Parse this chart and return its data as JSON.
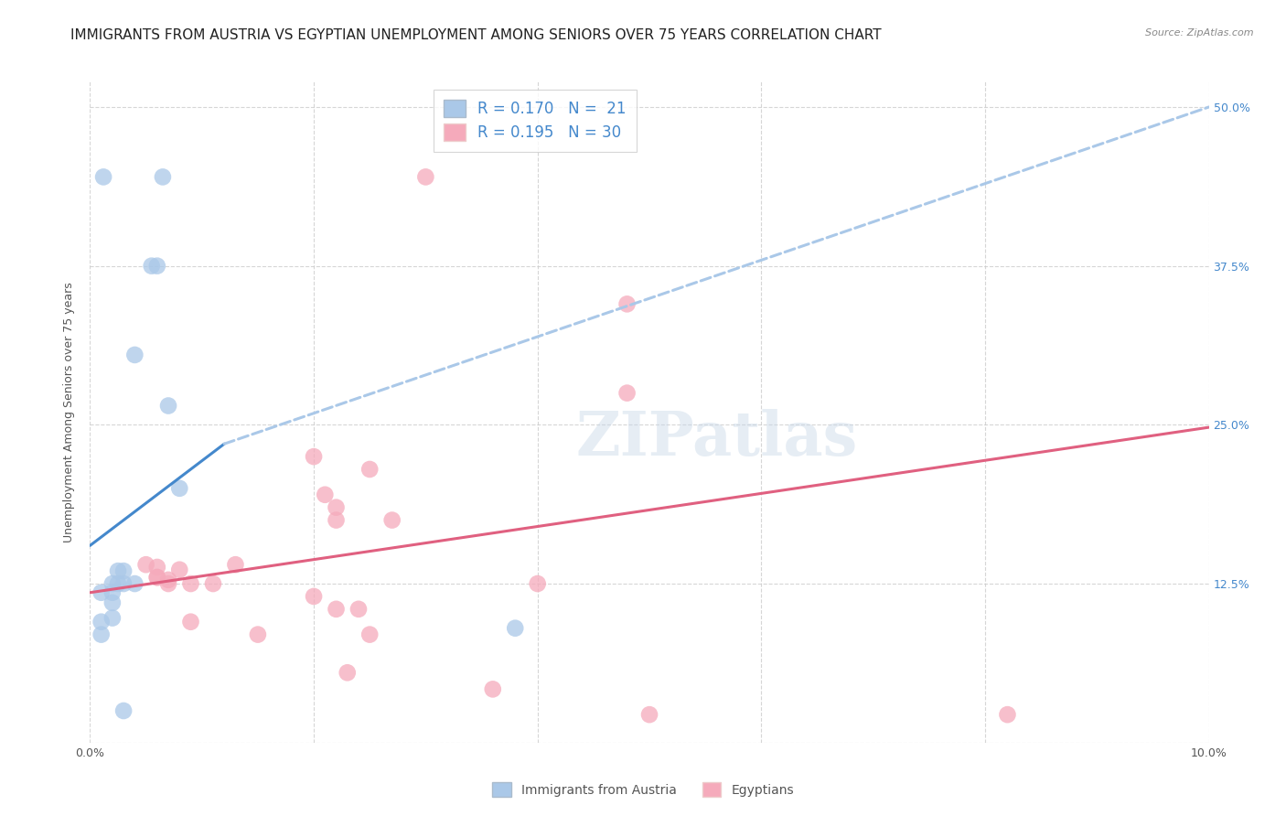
{
  "title": "IMMIGRANTS FROM AUSTRIA VS EGYPTIAN UNEMPLOYMENT AMONG SENIORS OVER 75 YEARS CORRELATION CHART",
  "source": "Source: ZipAtlas.com",
  "ylabel": "Unemployment Among Seniors over 75 years",
  "xlim": [
    0.0,
    0.1
  ],
  "ylim": [
    0.0,
    0.52
  ],
  "xtick_vals": [
    0.0,
    0.02,
    0.04,
    0.06,
    0.08,
    0.1
  ],
  "xtick_labels": [
    "0.0%",
    "",
    "",
    "",
    "",
    "10.0%"
  ],
  "yticks_right": [
    0.0,
    0.125,
    0.25,
    0.375,
    0.5
  ],
  "ytick_right_labels": [
    "",
    "12.5%",
    "25.0%",
    "37.5%",
    "50.0%"
  ],
  "blue_R": 0.17,
  "blue_N": 21,
  "pink_R": 0.195,
  "pink_N": 30,
  "blue_color": "#aac8e8",
  "pink_color": "#f5aabb",
  "blue_line_color": "#4488cc",
  "pink_line_color": "#e06080",
  "dashed_line_color": "#aac8e8",
  "legend_R_color": "#4488cc",
  "background_color": "#ffffff",
  "grid_color": "#cccccc",
  "blue_points": [
    [
      0.0012,
      0.445
    ],
    [
      0.0065,
      0.445
    ],
    [
      0.0055,
      0.375
    ],
    [
      0.006,
      0.375
    ],
    [
      0.004,
      0.305
    ],
    [
      0.007,
      0.265
    ],
    [
      0.008,
      0.2
    ],
    [
      0.0025,
      0.135
    ],
    [
      0.003,
      0.135
    ],
    [
      0.002,
      0.125
    ],
    [
      0.0025,
      0.125
    ],
    [
      0.003,
      0.125
    ],
    [
      0.004,
      0.125
    ],
    [
      0.001,
      0.118
    ],
    [
      0.002,
      0.118
    ],
    [
      0.002,
      0.11
    ],
    [
      0.002,
      0.098
    ],
    [
      0.001,
      0.095
    ],
    [
      0.001,
      0.085
    ],
    [
      0.003,
      0.025
    ],
    [
      0.038,
      0.09
    ]
  ],
  "pink_points": [
    [
      0.03,
      0.445
    ],
    [
      0.048,
      0.345
    ],
    [
      0.048,
      0.275
    ],
    [
      0.02,
      0.225
    ],
    [
      0.025,
      0.215
    ],
    [
      0.021,
      0.195
    ],
    [
      0.022,
      0.185
    ],
    [
      0.022,
      0.175
    ],
    [
      0.027,
      0.175
    ],
    [
      0.013,
      0.14
    ],
    [
      0.005,
      0.14
    ],
    [
      0.006,
      0.138
    ],
    [
      0.008,
      0.136
    ],
    [
      0.006,
      0.13
    ],
    [
      0.006,
      0.13
    ],
    [
      0.007,
      0.128
    ],
    [
      0.007,
      0.125
    ],
    [
      0.009,
      0.125
    ],
    [
      0.011,
      0.125
    ],
    [
      0.04,
      0.125
    ],
    [
      0.02,
      0.115
    ],
    [
      0.022,
      0.105
    ],
    [
      0.024,
      0.105
    ],
    [
      0.009,
      0.095
    ],
    [
      0.015,
      0.085
    ],
    [
      0.025,
      0.085
    ],
    [
      0.023,
      0.055
    ],
    [
      0.036,
      0.042
    ],
    [
      0.05,
      0.022
    ],
    [
      0.082,
      0.022
    ]
  ],
  "blue_solid_line": [
    [
      0.0,
      0.155
    ],
    [
      0.012,
      0.235
    ]
  ],
  "blue_dashed_line": [
    [
      0.012,
      0.235
    ],
    [
      0.1,
      0.5
    ]
  ],
  "pink_line": [
    [
      0.0,
      0.118
    ],
    [
      0.1,
      0.248
    ]
  ],
  "watermark_text": "ZIPatlas",
  "title_fontsize": 11,
  "axis_fontsize": 9,
  "tick_fontsize": 9,
  "point_size": 180,
  "legend_item1": "R = 0.170   N =  21",
  "legend_item2": "R = 0.195   N = 30",
  "bottom_legend1": "Immigrants from Austria",
  "bottom_legend2": "Egyptians"
}
